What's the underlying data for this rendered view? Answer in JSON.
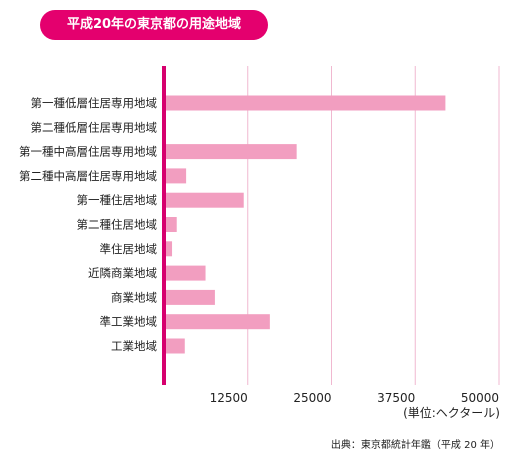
{
  "header": {
    "title": "平成20年の東京都の用途地域"
  },
  "chart_data": {
    "type": "bar",
    "orientation": "horizontal",
    "categories": [
      "第一種低層住居専用地域",
      "第二種低層住居専用地域",
      "第一種中高層住居専用地域",
      "第二種中高層住居専用地域",
      "第一種住居地域",
      "第二種住居地域",
      "準住居地域",
      "近隣商業地域",
      "商業地域",
      "準工業地域",
      "工業地域"
    ],
    "values": [
      42000,
      300,
      19800,
      3300,
      11900,
      1900,
      1200,
      6200,
      7600,
      15800,
      3100
    ],
    "x_ticks": [
      "12500",
      "25000",
      "37500",
      "50000"
    ],
    "xlim": [
      0,
      50000
    ],
    "unit": "(単位:ヘクタール)",
    "source": "出典：東京都統計年鑑（平成 20 年）",
    "grid": true,
    "bar_color": "#f29ec0",
    "axis_color": "#d6006e",
    "grid_color": "#f0b8d0"
  }
}
